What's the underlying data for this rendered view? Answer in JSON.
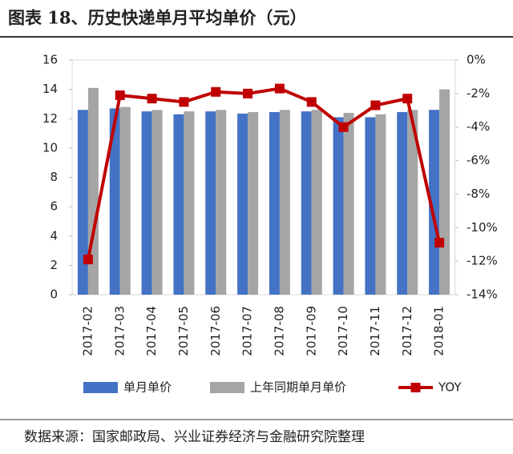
{
  "chart_data": {
    "type": "bar-line",
    "title": "图表 18、历史快递单月平均单价（元）",
    "source": "数据来源：国家邮政局、兴业证券经济与金融研究院整理",
    "categories": [
      "2017-02",
      "2017-03",
      "2017-04",
      "2017-05",
      "2017-06",
      "2017-07",
      "2017-08",
      "2017-09",
      "2017-10",
      "2017-11",
      "2017-12",
      "2018-01"
    ],
    "series": [
      {
        "name": "单月单价",
        "type": "bar",
        "color": "#4472c4",
        "values": [
          12.6,
          12.7,
          12.5,
          12.3,
          12.5,
          12.35,
          12.45,
          12.5,
          12.1,
          12.1,
          12.45,
          12.6
        ]
      },
      {
        "name": "上年同期单月单价",
        "type": "bar",
        "color": "#a5a5a5",
        "values": [
          14.1,
          12.8,
          12.6,
          12.5,
          12.6,
          12.45,
          12.6,
          12.6,
          12.4,
          12.3,
          12.6,
          14.0
        ]
      },
      {
        "name": "YOY",
        "type": "line",
        "axis": "y2",
        "color": "#c00000",
        "values": [
          -11.9,
          -2.1,
          -2.3,
          -2.5,
          -1.9,
          -2.0,
          -1.7,
          -2.5,
          -4.0,
          -2.7,
          -2.3,
          -10.9
        ]
      }
    ],
    "ylim": [
      0,
      16
    ],
    "yticks": [
      0,
      2,
      4,
      6,
      8,
      10,
      12,
      14,
      16
    ],
    "y2lim": [
      -14,
      0
    ],
    "y2ticks": [
      {
        "value": 0,
        "label": "0%"
      },
      {
        "value": -2,
        "label": "-2%"
      },
      {
        "value": -4,
        "label": "-4%"
      },
      {
        "value": -6,
        "label": "-6%"
      },
      {
        "value": -8,
        "label": "-8%"
      },
      {
        "value": -10,
        "label": "-10%"
      },
      {
        "value": -12,
        "label": "-12%"
      },
      {
        "value": -14,
        "label": "-14%"
      }
    ]
  }
}
